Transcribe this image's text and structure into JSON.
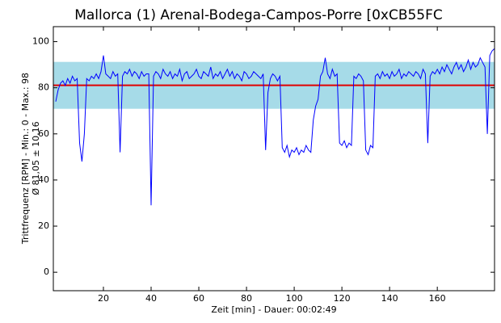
{
  "chart_data": {
    "type": "line",
    "title": "Mallorca (1) Arenal-Bodega-Campos-Porre [0xCB55FC",
    "xlabel": "Zeit [min] - Dauer: 00:02:49",
    "ylabel": [
      "Trittfrequenz [RPM] - Min.: 0 - Max.: 98",
      "Ø 81,05 ± 10,16"
    ],
    "x": [
      0,
      1,
      2,
      3,
      4,
      5,
      6,
      7,
      8,
      9,
      10,
      11,
      12,
      13,
      14,
      15,
      16,
      17,
      18,
      19,
      20,
      21,
      22,
      23,
      24,
      25,
      26,
      27,
      28,
      29,
      30,
      31,
      32,
      33,
      34,
      35,
      36,
      37,
      38,
      39,
      40,
      41,
      42,
      43,
      44,
      45,
      46,
      47,
      48,
      49,
      50,
      51,
      52,
      53,
      54,
      55,
      56,
      57,
      58,
      59,
      60,
      61,
      62,
      63,
      64,
      65,
      66,
      67,
      68,
      69,
      70,
      71,
      72,
      73,
      74,
      75,
      76,
      77,
      78,
      79,
      80,
      81,
      82,
      83,
      84,
      85,
      86,
      87,
      88,
      89,
      90,
      91,
      92,
      93,
      94,
      95,
      96,
      97,
      98,
      99,
      100,
      101,
      102,
      103,
      104,
      105,
      106,
      107,
      108,
      109,
      110,
      111,
      112,
      113,
      114,
      115,
      116,
      117,
      118,
      119,
      120,
      121,
      122,
      123,
      124,
      125,
      126,
      127,
      128,
      129,
      130,
      131,
      132,
      133,
      134,
      135,
      136,
      137,
      138,
      139,
      140,
      141,
      142,
      143,
      144,
      145,
      146,
      147,
      148,
      149,
      150,
      151,
      152,
      153,
      154,
      155,
      156,
      157,
      158,
      159,
      160,
      161,
      162,
      163,
      164,
      165,
      166,
      167,
      168,
      169,
      170,
      171,
      172,
      173,
      174,
      175,
      176,
      177,
      178,
      179,
      180,
      181,
      182,
      183,
      184
    ],
    "series": [
      {
        "color": "#0000ff",
        "values": [
          74,
          79,
          82,
          83,
          81,
          84,
          82,
          85,
          83,
          84,
          56,
          48,
          60,
          84,
          83,
          85,
          84,
          86,
          84,
          87,
          94,
          86,
          85,
          84,
          87,
          85,
          86,
          52,
          85,
          87,
          86,
          88,
          85,
          87,
          86,
          84,
          87,
          85,
          86,
          86,
          29,
          85,
          87,
          86,
          84,
          88,
          86,
          85,
          87,
          84,
          86,
          85,
          88,
          83,
          86,
          87,
          84,
          85,
          86,
          88,
          85,
          84,
          87,
          86,
          85,
          89,
          84,
          86,
          85,
          87,
          84,
          86,
          88,
          85,
          87,
          84,
          86,
          85,
          83,
          87,
          86,
          84,
          85,
          87,
          86,
          85,
          84,
          86,
          53,
          78,
          84,
          86,
          85,
          83,
          85,
          54,
          52,
          55,
          50,
          53,
          52,
          54,
          51,
          53,
          52,
          55,
          53,
          52,
          66,
          72,
          75,
          85,
          87,
          93,
          86,
          84,
          88,
          85,
          86,
          56,
          55,
          57,
          54,
          56,
          55,
          85,
          84,
          86,
          85,
          83,
          53,
          51,
          55,
          54,
          85,
          86,
          84,
          87,
          85,
          86,
          84,
          87,
          85,
          86,
          88,
          84,
          86,
          85,
          87,
          86,
          85,
          87,
          86,
          84,
          88,
          86,
          56,
          85,
          87,
          86,
          88,
          86,
          89,
          87,
          90,
          88,
          86,
          89,
          91,
          88,
          90,
          87,
          89,
          92,
          88,
          91,
          89,
          90,
          93,
          91,
          89,
          60,
          94,
          96,
          97
        ]
      }
    ],
    "reference_line": {
      "value": 81.05,
      "color": "#e00000"
    },
    "band": {
      "range": [
        70.89,
        91.21
      ],
      "color": "#a6dbe8"
    },
    "xlim": [
      -1,
      184
    ],
    "ylim": [
      -8,
      106.5
    ],
    "xticks": [
      20,
      40,
      60,
      80,
      100,
      120,
      140,
      160
    ],
    "yticks": [
      0,
      20,
      40,
      60,
      80,
      100
    ]
  }
}
